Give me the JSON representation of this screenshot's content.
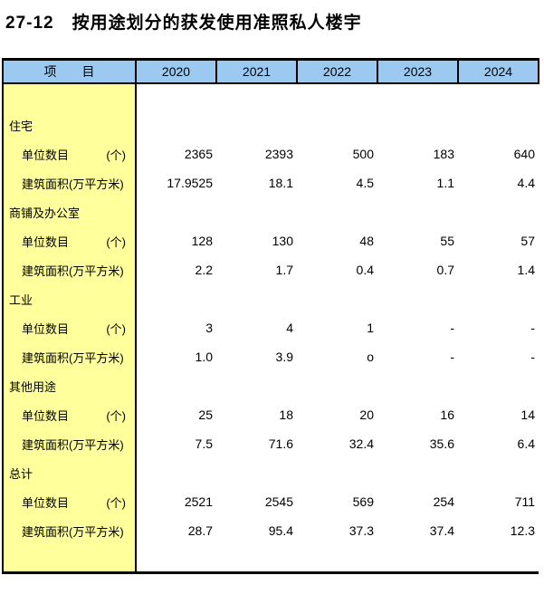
{
  "page": {
    "title": "27-12　按用途划分的获发使用准照私人楼宇"
  },
  "table": {
    "item_header": "项　　目",
    "years": [
      "2020",
      "2021",
      "2022",
      "2023",
      "2024"
    ],
    "row_labels": {
      "units_label": "单位数目",
      "units_unit": "(个)",
      "area_label": "建筑面积(万平方米)"
    },
    "sections": [
      {
        "category": "住宅",
        "units": [
          "2365",
          "2393",
          "500",
          "183",
          "640"
        ],
        "area": [
          "17.9525",
          "18.1",
          "4.5",
          "1.1",
          "4.4"
        ]
      },
      {
        "category": "商铺及办公室",
        "units": [
          "128",
          "130",
          "48",
          "55",
          "57"
        ],
        "area": [
          "2.2",
          "1.7",
          "0.4",
          "0.7",
          "1.4"
        ]
      },
      {
        "category": "工业",
        "units": [
          "3",
          "4",
          "1",
          "-",
          "-"
        ],
        "area": [
          "1.0",
          "3.9",
          "o",
          "-",
          "-"
        ]
      },
      {
        "category": "其他用途",
        "units": [
          "25",
          "18",
          "20",
          "16",
          "14"
        ],
        "area": [
          "7.5",
          "71.6",
          "32.4",
          "35.6",
          "6.4"
        ]
      },
      {
        "category": "总计",
        "units": [
          "2521",
          "2545",
          "569",
          "254",
          "711"
        ],
        "area": [
          "28.7",
          "95.4",
          "37.3",
          "37.4",
          "12.3"
        ]
      }
    ]
  },
  "colors": {
    "header_bg": "#9CC9F0",
    "stub_bg": "#FFFF9C",
    "border": "#000000",
    "text": "#000000"
  }
}
